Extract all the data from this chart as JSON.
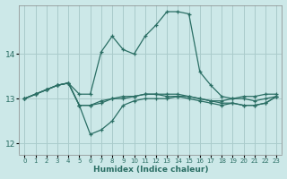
{
  "xlabel": "Humidex (Indice chaleur)",
  "xlim": [
    -0.5,
    23.5
  ],
  "ylim": [
    11.75,
    15.1
  ],
  "yticks": [
    12,
    13,
    14
  ],
  "xticks": [
    0,
    1,
    2,
    3,
    4,
    5,
    6,
    7,
    8,
    9,
    10,
    11,
    12,
    13,
    14,
    15,
    16,
    17,
    18,
    19,
    20,
    21,
    22,
    23
  ],
  "background_color": "#cce8e8",
  "grid_color": "#aacccc",
  "line_color": "#2a6e64",
  "series": [
    [
      13.0,
      13.1,
      13.2,
      13.3,
      13.35,
      13.1,
      13.1,
      14.05,
      14.4,
      14.1,
      14.0,
      14.4,
      14.65,
      14.95,
      14.95,
      14.9,
      13.6,
      13.3,
      13.05,
      13.0,
      13.05,
      13.05,
      13.1,
      13.1
    ],
    [
      13.0,
      13.1,
      13.2,
      13.3,
      13.35,
      12.85,
      12.85,
      12.9,
      13.0,
      13.0,
      13.05,
      13.1,
      13.1,
      13.05,
      13.05,
      13.05,
      13.0,
      12.95,
      12.95,
      13.0,
      13.0,
      12.95,
      13.0,
      13.05
    ],
    [
      13.0,
      13.1,
      13.2,
      13.3,
      13.35,
      12.85,
      12.85,
      12.95,
      13.0,
      13.05,
      13.05,
      13.1,
      13.1,
      13.1,
      13.1,
      13.05,
      13.0,
      12.95,
      12.9,
      12.9,
      12.85,
      12.85,
      12.9,
      13.05
    ],
    [
      13.0,
      13.1,
      13.2,
      13.3,
      13.35,
      12.85,
      12.2,
      12.3,
      12.5,
      12.85,
      12.95,
      13.0,
      13.0,
      13.0,
      13.05,
      13.0,
      12.95,
      12.9,
      12.85,
      12.9,
      12.85,
      12.85,
      12.9,
      13.05
    ]
  ]
}
